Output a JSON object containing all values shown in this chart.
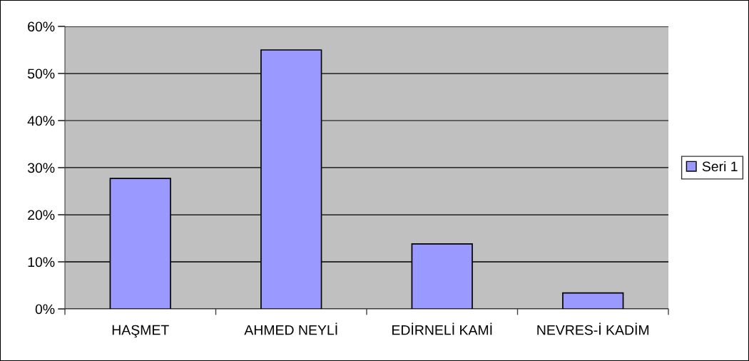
{
  "chart_data": {
    "type": "bar",
    "categories": [
      "HAŞMET",
      "AHMED NEYLİ",
      "EDİRNELİ KAMİ",
      "NEVRES-İ KADİM"
    ],
    "series": [
      {
        "name": "Seri 1",
        "color": "#9999ff",
        "values": [
          27.7,
          55,
          13.8,
          3.4
        ]
      }
    ],
    "ylim": [
      0,
      60
    ],
    "yticks": [
      {
        "value": 0,
        "label": "0%"
      },
      {
        "value": 10,
        "label": "10%"
      },
      {
        "value": 20,
        "label": "20%"
      },
      {
        "value": 30,
        "label": "30%"
      },
      {
        "value": 40,
        "label": "40%"
      },
      {
        "value": 50,
        "label": "50%"
      },
      {
        "value": 60,
        "label": "60%"
      }
    ],
    "grid": "y",
    "legend": "right"
  }
}
